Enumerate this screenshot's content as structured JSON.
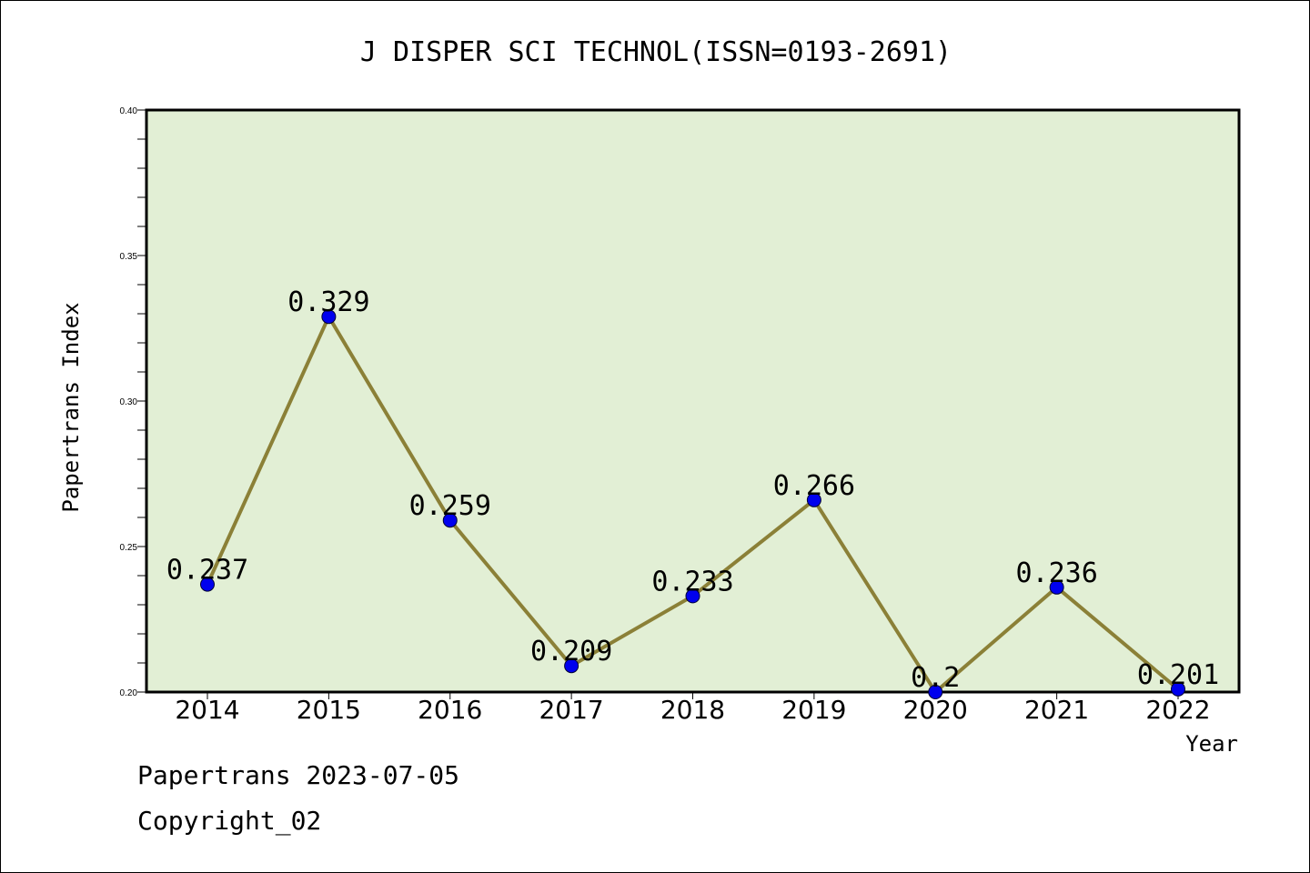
{
  "footer": {
    "line1": "Papertrans 2023-07-05",
    "line2": "Copyright_02"
  },
  "chart_data": {
    "type": "line",
    "title": "J DISPER SCI TECHNOL(ISSN=0193-2691)",
    "xlabel": "Year",
    "ylabel": "Papertrans Index",
    "x": [
      "2014",
      "2015",
      "2016",
      "2017",
      "2018",
      "2019",
      "2020",
      "2021",
      "2022"
    ],
    "series": [
      {
        "values": [
          0.237,
          0.329,
          0.259,
          0.209,
          0.233,
          0.266,
          0.2,
          0.236,
          0.201
        ],
        "labels": [
          "0.237",
          "0.329",
          "0.259",
          "0.209",
          "0.233",
          "0.266",
          "0.2",
          "0.236",
          "0.201"
        ]
      }
    ],
    "ylim": [
      0.2,
      0.4
    ],
    "yticks": [
      "0.20",
      "0.25",
      "0.30",
      "0.35",
      "0.40"
    ],
    "grid": false,
    "colors": {
      "plot_background": "#e2efd5",
      "line": "#8b8037",
      "marker": "#0000ee"
    }
  }
}
